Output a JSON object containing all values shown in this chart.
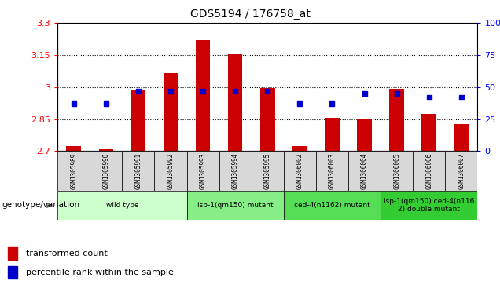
{
  "title": "GDS5194 / 176758_at",
  "samples": [
    "GSM1305989",
    "GSM1305990",
    "GSM1305991",
    "GSM1305992",
    "GSM1305993",
    "GSM1305994",
    "GSM1305995",
    "GSM1306002",
    "GSM1306003",
    "GSM1306004",
    "GSM1306005",
    "GSM1306006",
    "GSM1306007"
  ],
  "transformed_count": [
    2.725,
    2.71,
    2.985,
    3.065,
    3.22,
    3.155,
    2.995,
    2.725,
    2.855,
    2.85,
    2.99,
    2.875,
    2.825
  ],
  "percentile_rank": [
    37,
    37,
    47,
    47,
    47,
    47,
    47,
    37,
    37,
    45,
    45,
    42,
    42
  ],
  "ymin": 2.7,
  "ymax": 3.3,
  "yticks": [
    2.7,
    2.85,
    3.0,
    3.15,
    3.3
  ],
  "right_yticks": [
    0,
    25,
    50,
    75,
    100
  ],
  "bar_color": "#cc0000",
  "dot_color": "#0000cc",
  "groups": [
    {
      "label": "wild type",
      "start": 0,
      "end": 4,
      "color": "#ccffcc"
    },
    {
      "label": "isp-1(qm150) mutant",
      "start": 4,
      "end": 7,
      "color": "#88ee88"
    },
    {
      "label": "ced-4(n1162) mutant",
      "start": 7,
      "end": 10,
      "color": "#55dd55"
    },
    {
      "label": "isp-1(qm150) ced-4(n116\n2) double mutant",
      "start": 10,
      "end": 13,
      "color": "#33cc33"
    }
  ],
  "xlabel": "genotype/variation",
  "legend_bar": "transformed count",
  "legend_dot": "percentile rank within the sample",
  "bar_width": 0.45
}
